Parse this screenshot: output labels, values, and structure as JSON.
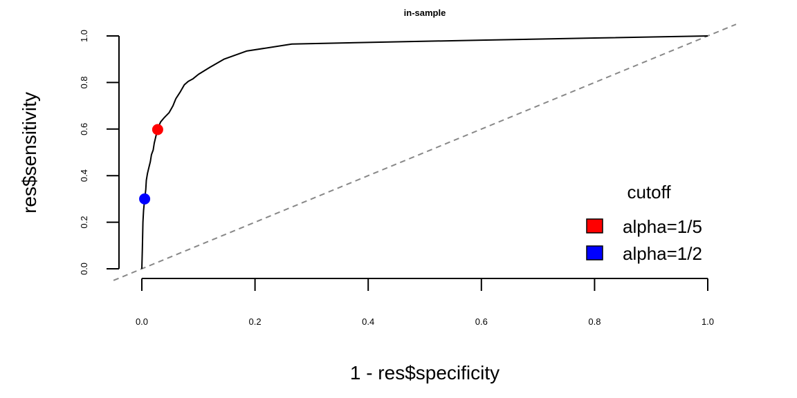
{
  "chart_data": {
    "type": "line",
    "title": "in-sample",
    "xlabel": "1 - res$specificity",
    "ylabel": "res$sensitivity",
    "xlim": [
      0,
      1
    ],
    "ylim": [
      0,
      1
    ],
    "x_ticks": [
      "0.0",
      "0.2",
      "0.4",
      "0.6",
      "0.8",
      "1.0"
    ],
    "y_ticks": [
      "0.0",
      "0.2",
      "0.4",
      "0.6",
      "0.8",
      "1.0"
    ],
    "grid": false,
    "series": [
      {
        "color": "#000000",
        "points": [
          [
            0.0,
            0.0
          ],
          [
            0.001,
            0.09
          ],
          [
            0.002,
            0.2
          ],
          [
            0.003,
            0.25
          ],
          [
            0.005,
            0.3
          ],
          [
            0.007,
            0.34
          ],
          [
            0.008,
            0.38
          ],
          [
            0.01,
            0.41
          ],
          [
            0.012,
            0.43
          ],
          [
            0.015,
            0.46
          ],
          [
            0.017,
            0.49
          ],
          [
            0.02,
            0.51
          ],
          [
            0.022,
            0.54
          ],
          [
            0.025,
            0.57
          ],
          [
            0.028,
            0.6
          ],
          [
            0.033,
            0.63
          ],
          [
            0.04,
            0.65
          ],
          [
            0.048,
            0.67
          ],
          [
            0.055,
            0.7
          ],
          [
            0.06,
            0.73
          ],
          [
            0.068,
            0.76
          ],
          [
            0.075,
            0.79
          ],
          [
            0.082,
            0.805
          ],
          [
            0.09,
            0.815
          ],
          [
            0.1,
            0.835
          ],
          [
            0.12,
            0.865
          ],
          [
            0.145,
            0.9
          ],
          [
            0.185,
            0.935
          ],
          [
            0.265,
            0.965
          ],
          [
            0.4,
            0.972
          ],
          [
            0.6,
            0.982
          ],
          [
            0.8,
            0.991
          ],
          [
            1.0,
            1.0
          ]
        ]
      },
      {
        "style": "dashed",
        "color": "#888888",
        "points": [
          [
            -0.05,
            -0.05
          ],
          [
            1.05,
            1.05
          ]
        ]
      }
    ],
    "markers": [
      {
        "label": "alpha=1/5",
        "color": "#ff0000",
        "x": 0.028,
        "y": 0.598
      },
      {
        "label": "alpha=1/2",
        "color": "#0000ff",
        "x": 0.005,
        "y": 0.3
      }
    ],
    "legend": {
      "title": "cutoff",
      "placement": "bottom-right",
      "entries": [
        {
          "label": "alpha=1/5",
          "color": "#ff0000"
        },
        {
          "label": "alpha=1/2",
          "color": "#0000ff"
        }
      ]
    }
  }
}
